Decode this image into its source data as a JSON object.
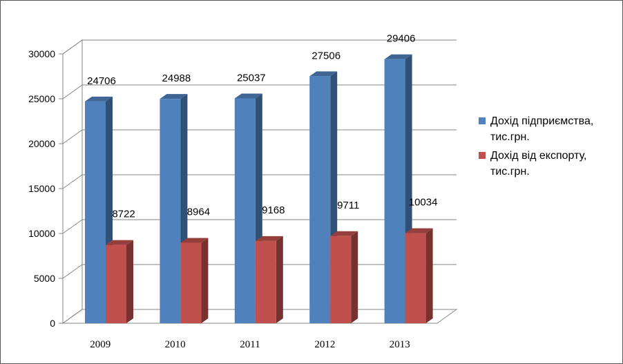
{
  "chart_data": {
    "type": "bar",
    "categories": [
      "2009",
      "2010",
      "2011",
      "2012",
      "2013"
    ],
    "series": [
      {
        "name": "Дохід підприємства, тис.грн.",
        "values": [
          24706,
          24988,
          25037,
          27506,
          29406
        ],
        "color": "#4f81bd"
      },
      {
        "name": "Дохід від експорту, тис.грн.",
        "values": [
          8722,
          8964,
          9168,
          9711,
          10034
        ],
        "color": "#c0504d"
      }
    ],
    "ylim": [
      0,
      30000
    ],
    "yticks": [
      "0",
      "5000",
      "10000",
      "15000",
      "20000",
      "25000",
      "30000"
    ],
    "grid": true,
    "legend_position": "right",
    "style": "3d-clustered-column"
  }
}
